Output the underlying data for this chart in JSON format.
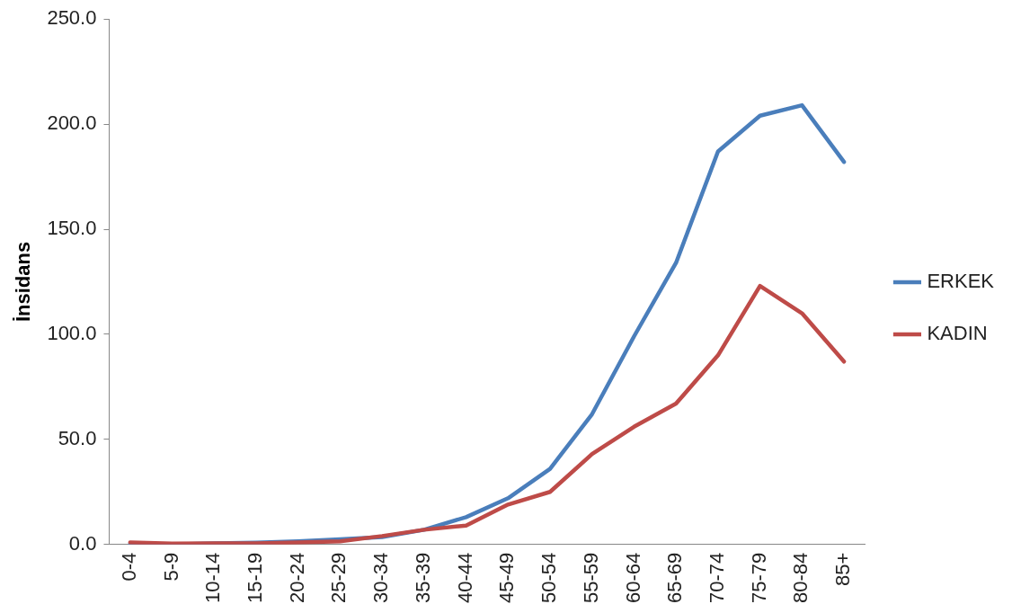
{
  "chart_data": {
    "type": "line",
    "ylabel": "İnsidans",
    "categories": [
      "0-4",
      "5-9",
      "10-14",
      "15-19",
      "20-24",
      "25-29",
      "30-34",
      "35-39",
      "40-44",
      "45-49",
      "50-54",
      "55-59",
      "60-64",
      "65-69",
      "70-74",
      "75-79",
      "80-84",
      "85+"
    ],
    "series": [
      {
        "name": "ERKEK",
        "color": "#4a7ebb",
        "values": [
          0.3,
          0,
          0.5,
          0.8,
          1.5,
          2.5,
          3.5,
          7,
          13,
          22,
          36,
          62,
          99,
          134,
          187,
          204,
          209,
          182
        ]
      },
      {
        "name": "KADIN",
        "color": "#be4b48",
        "values": [
          1,
          0.4,
          0.5,
          0.5,
          1,
          1.5,
          4,
          7,
          9,
          19,
          25,
          43,
          56,
          67,
          90,
          123,
          110,
          87
        ]
      }
    ],
    "ylim": [
      0,
      250
    ],
    "yticks": [
      {
        "value": 0,
        "label": "0.0"
      },
      {
        "value": 50,
        "label": "50.0"
      },
      {
        "value": 100,
        "label": "100.0"
      },
      {
        "value": 150,
        "label": "150.0"
      },
      {
        "value": 200,
        "label": "200.0"
      },
      {
        "value": 250,
        "label": "250.0"
      }
    ],
    "grid": false,
    "legend": "right",
    "marker": "none",
    "line_style": "solid"
  }
}
